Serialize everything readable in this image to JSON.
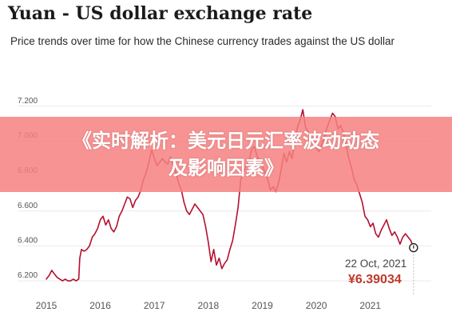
{
  "header": {
    "title": "Yuan - US dollar exchange rate",
    "subtitle": "Price trends over time for how the Chinese currency trades against the US dollar"
  },
  "banner": {
    "line1": "《实时解析：美元日元汇率波动动态",
    "line2": "及影响因素》"
  },
  "tooltip": {
    "date": "22 Oct, 2021",
    "value": "¥6.39034"
  },
  "colors": {
    "line": "#b5102f",
    "grid": "#e9e9e9",
    "axis_text": "#555555",
    "tooltip_value": "#c0392b",
    "banner": "#f68080"
  },
  "chart_data": {
    "type": "line",
    "title": "Yuan - US dollar exchange rate",
    "xlabel": "",
    "ylabel": "",
    "xlim": [
      2015.0,
      2021.95
    ],
    "ylim": [
      6.15,
      7.35
    ],
    "y_ticks": [
      "7.200",
      "7.000",
      "6.800",
      "6.600",
      "6.400",
      "6.200"
    ],
    "y_tick_values": [
      7.2,
      7.0,
      6.8,
      6.6,
      6.4,
      6.2
    ],
    "x_ticks": [
      "2015",
      "2016",
      "2017",
      "2018",
      "2019",
      "2020",
      "2021"
    ],
    "x_tick_values": [
      2015,
      2016,
      2017,
      2018,
      2019,
      2020,
      2021
    ],
    "grid": true,
    "series": [
      {
        "x": [
          2015.0,
          2015.05,
          2015.1,
          2015.15,
          2015.2,
          2015.25,
          2015.3,
          2015.35,
          2015.4,
          2015.45,
          2015.5,
          2015.55,
          2015.6,
          2015.62,
          2015.65,
          2015.7,
          2015.75,
          2015.8,
          2015.85,
          2015.9,
          2015.95,
          2016.0,
          2016.05,
          2016.1,
          2016.15,
          2016.2,
          2016.25,
          2016.3,
          2016.35,
          2016.4,
          2016.45,
          2016.5,
          2016.55,
          2016.6,
          2016.65,
          2016.7,
          2016.75,
          2016.8,
          2016.85,
          2016.9,
          2016.95,
          2017.0,
          2017.05,
          2017.1,
          2017.15,
          2017.2,
          2017.25,
          2017.3,
          2017.35,
          2017.4,
          2017.45,
          2017.5,
          2017.55,
          2017.6,
          2017.65,
          2017.7,
          2017.75,
          2017.8,
          2017.85,
          2017.9,
          2017.95,
          2018.0,
          2018.05,
          2018.1,
          2018.15,
          2018.2,
          2018.25,
          2018.3,
          2018.35,
          2018.4,
          2018.45,
          2018.5,
          2018.55,
          2018.6,
          2018.65,
          2018.7,
          2018.75,
          2018.8,
          2018.85,
          2018.9,
          2018.95,
          2019.0,
          2019.05,
          2019.1,
          2019.15,
          2019.2,
          2019.25,
          2019.3,
          2019.35,
          2019.4,
          2019.45,
          2019.5,
          2019.55,
          2019.6,
          2019.65,
          2019.7,
          2019.75,
          2019.8,
          2019.85,
          2019.9,
          2019.95,
          2020.0,
          2020.05,
          2020.1,
          2020.15,
          2020.2,
          2020.25,
          2020.3,
          2020.35,
          2020.4,
          2020.45,
          2020.5,
          2020.55,
          2020.6,
          2020.65,
          2020.7,
          2020.75,
          2020.8,
          2020.85,
          2020.9,
          2020.95,
          2021.0,
          2021.05,
          2021.1,
          2021.15,
          2021.2,
          2021.25,
          2021.3,
          2021.35,
          2021.4,
          2021.45,
          2021.5,
          2021.55,
          2021.6,
          2021.65,
          2021.7,
          2021.75,
          2021.8
        ],
        "values": [
          6.21,
          6.23,
          6.26,
          6.24,
          6.22,
          6.21,
          6.2,
          6.21,
          6.2,
          6.2,
          6.21,
          6.2,
          6.21,
          6.33,
          6.38,
          6.37,
          6.38,
          6.4,
          6.45,
          6.47,
          6.5,
          6.55,
          6.57,
          6.52,
          6.55,
          6.5,
          6.48,
          6.51,
          6.57,
          6.6,
          6.64,
          6.68,
          6.67,
          6.62,
          6.66,
          6.68,
          6.72,
          6.78,
          6.82,
          6.88,
          6.95,
          6.9,
          6.86,
          6.88,
          6.9,
          6.88,
          6.87,
          6.91,
          6.86,
          6.82,
          6.76,
          6.72,
          6.65,
          6.6,
          6.58,
          6.61,
          6.64,
          6.62,
          6.6,
          6.58,
          6.51,
          6.42,
          6.31,
          6.38,
          6.29,
          6.33,
          6.27,
          6.3,
          6.32,
          6.38,
          6.43,
          6.52,
          6.62,
          6.78,
          6.82,
          6.86,
          6.88,
          6.95,
          6.97,
          6.92,
          6.88,
          6.86,
          6.82,
          6.78,
          6.72,
          6.74,
          6.71,
          6.76,
          6.84,
          6.93,
          6.88,
          6.94,
          6.9,
          7.0,
          7.08,
          7.12,
          7.18,
          7.08,
          7.05,
          7.02,
          7.0,
          6.96,
          6.94,
          6.98,
          7.03,
          7.08,
          7.12,
          7.16,
          7.14,
          7.07,
          7.09,
          7.05,
          6.98,
          6.9,
          6.85,
          6.78,
          6.75,
          6.7,
          6.65,
          6.57,
          6.55,
          6.51,
          6.53,
          6.47,
          6.45,
          6.49,
          6.52,
          6.55,
          6.5,
          6.46,
          6.48,
          6.45,
          6.41,
          6.45,
          6.47,
          6.45,
          6.43,
          6.39
        ]
      }
    ]
  }
}
